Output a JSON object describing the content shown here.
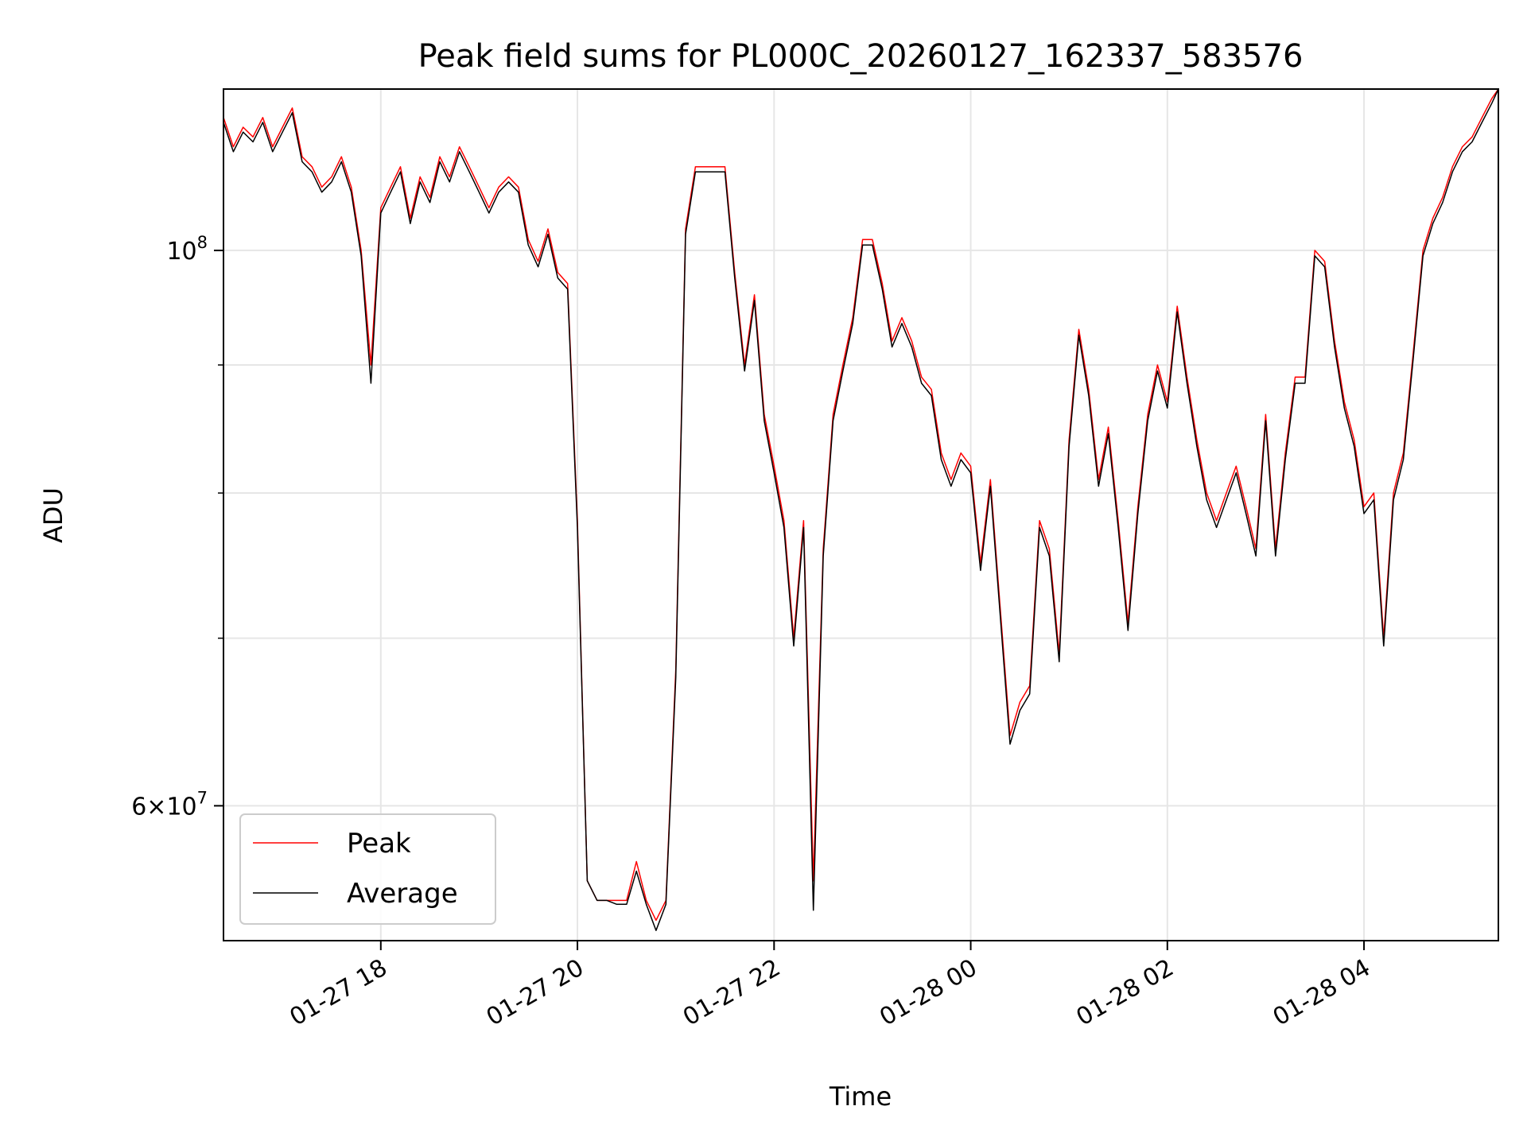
{
  "chart_data": {
    "type": "line",
    "title": "Peak field sums for PL000C_20260127_162337_583576",
    "xlabel": "Time",
    "ylabel": "ADU",
    "x_type": "datetime",
    "xlim": [
      "2026-01-27 16:24",
      "2026-01-28 05:22"
    ],
    "ylim": [
      53000000,
      116000000
    ],
    "y_scale": "log",
    "grid": true,
    "legend_position": "lower-left",
    "x_ticks": [
      {
        "label": "01-27 18",
        "value": "2026-01-27 18:00"
      },
      {
        "label": "01-27 20",
        "value": "2026-01-27 20:00"
      },
      {
        "label": "01-27 22",
        "value": "2026-01-27 22:00"
      },
      {
        "label": "01-28 00",
        "value": "2026-01-28 00:00"
      },
      {
        "label": "01-28 02",
        "value": "2026-01-28 02:00"
      },
      {
        "label": "01-28 04",
        "value": "2026-01-28 04:00"
      }
    ],
    "y_ticks": [
      {
        "label_base": "6×10",
        "label_exp": "7",
        "value": 60000000
      },
      {
        "label_base": "10",
        "label_exp": "8",
        "value": 100000000
      }
    ],
    "y_minor_ticks": [
      70000000,
      80000000,
      90000000
    ],
    "series": [
      {
        "name": "Peak",
        "color": "#ff0000",
        "x": [
          "2026-01-27 16:24",
          "2026-01-27 16:30",
          "2026-01-27 16:36",
          "2026-01-27 16:42",
          "2026-01-27 16:48",
          "2026-01-27 16:54",
          "2026-01-27 17:00",
          "2026-01-27 17:06",
          "2026-01-27 17:12",
          "2026-01-27 17:18",
          "2026-01-27 17:24",
          "2026-01-27 17:30",
          "2026-01-27 17:36",
          "2026-01-27 17:42",
          "2026-01-27 17:48",
          "2026-01-27 17:54",
          "2026-01-27 18:00",
          "2026-01-27 18:06",
          "2026-01-27 18:12",
          "2026-01-27 18:18",
          "2026-01-27 18:24",
          "2026-01-27 18:30",
          "2026-01-27 18:36",
          "2026-01-27 18:42",
          "2026-01-27 18:48",
          "2026-01-27 18:54",
          "2026-01-27 19:00",
          "2026-01-27 19:06",
          "2026-01-27 19:12",
          "2026-01-27 19:18",
          "2026-01-27 19:24",
          "2026-01-27 19:30",
          "2026-01-27 19:36",
          "2026-01-27 19:42",
          "2026-01-27 19:48",
          "2026-01-27 19:54",
          "2026-01-27 20:00",
          "2026-01-27 20:06",
          "2026-01-27 20:12",
          "2026-01-27 20:18",
          "2026-01-27 20:24",
          "2026-01-27 20:30",
          "2026-01-27 20:36",
          "2026-01-27 20:42",
          "2026-01-27 20:48",
          "2026-01-27 20:54",
          "2026-01-27 21:00",
          "2026-01-27 21:06",
          "2026-01-27 21:12",
          "2026-01-27 21:18",
          "2026-01-27 21:24",
          "2026-01-27 21:30",
          "2026-01-27 21:36",
          "2026-01-27 21:42",
          "2026-01-27 21:48",
          "2026-01-27 21:54",
          "2026-01-27 22:00",
          "2026-01-27 22:06",
          "2026-01-27 22:12",
          "2026-01-27 22:18",
          "2026-01-27 22:24",
          "2026-01-27 22:30",
          "2026-01-27 22:36",
          "2026-01-27 22:42",
          "2026-01-27 22:48",
          "2026-01-27 22:54",
          "2026-01-27 23:00",
          "2026-01-27 23:06",
          "2026-01-27 23:12",
          "2026-01-27 23:18",
          "2026-01-27 23:24",
          "2026-01-27 23:30",
          "2026-01-27 23:36",
          "2026-01-27 23:42",
          "2026-01-27 23:48",
          "2026-01-27 23:54",
          "2026-01-28 00:00",
          "2026-01-28 00:06",
          "2026-01-28 00:12",
          "2026-01-28 00:18",
          "2026-01-28 00:24",
          "2026-01-28 00:30",
          "2026-01-28 00:36",
          "2026-01-28 00:42",
          "2026-01-28 00:48",
          "2026-01-28 00:54",
          "2026-01-28 01:00",
          "2026-01-28 01:06",
          "2026-01-28 01:12",
          "2026-01-28 01:18",
          "2026-01-28 01:24",
          "2026-01-28 01:30",
          "2026-01-28 01:36",
          "2026-01-28 01:42",
          "2026-01-28 01:48",
          "2026-01-28 01:54",
          "2026-01-28 02:00",
          "2026-01-28 02:06",
          "2026-01-28 02:12",
          "2026-01-28 02:18",
          "2026-01-28 02:24",
          "2026-01-28 02:30",
          "2026-01-28 02:36",
          "2026-01-28 02:42",
          "2026-01-28 02:48",
          "2026-01-28 02:54",
          "2026-01-28 03:00",
          "2026-01-28 03:06",
          "2026-01-28 03:12",
          "2026-01-28 03:18",
          "2026-01-28 03:24",
          "2026-01-28 03:30",
          "2026-01-28 03:36",
          "2026-01-28 03:42",
          "2026-01-28 03:48",
          "2026-01-28 03:54",
          "2026-01-28 04:00",
          "2026-01-28 04:06",
          "2026-01-28 04:12",
          "2026-01-28 04:18",
          "2026-01-28 04:24",
          "2026-01-28 04:30",
          "2026-01-28 04:36",
          "2026-01-28 04:42",
          "2026-01-28 04:48",
          "2026-01-28 04:54",
          "2026-01-28 05:00",
          "2026-01-28 05:06",
          "2026-01-28 05:12",
          "2026-01-28 05:18",
          "2026-01-28 05:22"
        ],
        "y": [
          113000000,
          110000000,
          112000000,
          111000000,
          113000000,
          110000000,
          112000000,
          114000000,
          109000000,
          108000000,
          106000000,
          107000000,
          109000000,
          106000000,
          100000000,
          90000000,
          104000000,
          106000000,
          108000000,
          103000000,
          107000000,
          105000000,
          109000000,
          107000000,
          110000000,
          108000000,
          106000000,
          104000000,
          106000000,
          107000000,
          106000000,
          101000000,
          99000000,
          102000000,
          98000000,
          97000000,
          78000000,
          56000000,
          55000000,
          55000000,
          55000000,
          55000000,
          57000000,
          55000000,
          54000000,
          55000000,
          68000000,
          102000000,
          108000000,
          108000000,
          108000000,
          108000000,
          98000000,
          90000000,
          96000000,
          86000000,
          82000000,
          78000000,
          70000000,
          78000000,
          56000000,
          76000000,
          86000000,
          90000000,
          94000000,
          101000000,
          101000000,
          97000000,
          92000000,
          94000000,
          92000000,
          89000000,
          88000000,
          83000000,
          81000000,
          83000000,
          82000000,
          75000000,
          81000000,
          72000000,
          64000000,
          66000000,
          67000000,
          78000000,
          76000000,
          69000000,
          84000000,
          93000000,
          88000000,
          81000000,
          85000000,
          78000000,
          71000000,
          79000000,
          86000000,
          90000000,
          87000000,
          95000000,
          89000000,
          84000000,
          80000000,
          78000000,
          80000000,
          82000000,
          79000000,
          76000000,
          86000000,
          76000000,
          83000000,
          89000000,
          89000000,
          100000000,
          99000000,
          92000000,
          87000000,
          84000000,
          79000000,
          80000000,
          70000000,
          80000000,
          83000000,
          91000000,
          100000000,
          103000000,
          105000000,
          108000000,
          110000000,
          111000000,
          113000000,
          115000000,
          116000000
        ]
      },
      {
        "name": "Average",
        "color": "#000000",
        "x": [
          "2026-01-27 16:24",
          "2026-01-27 16:30",
          "2026-01-27 16:36",
          "2026-01-27 16:42",
          "2026-01-27 16:48",
          "2026-01-27 16:54",
          "2026-01-27 17:00",
          "2026-01-27 17:06",
          "2026-01-27 17:12",
          "2026-01-27 17:18",
          "2026-01-27 17:24",
          "2026-01-27 17:30",
          "2026-01-27 17:36",
          "2026-01-27 17:42",
          "2026-01-27 17:48",
          "2026-01-27 17:54",
          "2026-01-27 18:00",
          "2026-01-27 18:06",
          "2026-01-27 18:12",
          "2026-01-27 18:18",
          "2026-01-27 18:24",
          "2026-01-27 18:30",
          "2026-01-27 18:36",
          "2026-01-27 18:42",
          "2026-01-27 18:48",
          "2026-01-27 18:54",
          "2026-01-27 19:00",
          "2026-01-27 19:06",
          "2026-01-27 19:12",
          "2026-01-27 19:18",
          "2026-01-27 19:24",
          "2026-01-27 19:30",
          "2026-01-27 19:36",
          "2026-01-27 19:42",
          "2026-01-27 19:48",
          "2026-01-27 19:54",
          "2026-01-27 20:00",
          "2026-01-27 20:06",
          "2026-01-27 20:12",
          "2026-01-27 20:18",
          "2026-01-27 20:24",
          "2026-01-27 20:30",
          "2026-01-27 20:36",
          "2026-01-27 20:42",
          "2026-01-27 20:48",
          "2026-01-27 20:54",
          "2026-01-27 21:00",
          "2026-01-27 21:06",
          "2026-01-27 21:12",
          "2026-01-27 21:18",
          "2026-01-27 21:24",
          "2026-01-27 21:30",
          "2026-01-27 21:36",
          "2026-01-27 21:42",
          "2026-01-27 21:48",
          "2026-01-27 21:54",
          "2026-01-27 22:00",
          "2026-01-27 22:06",
          "2026-01-27 22:12",
          "2026-01-27 22:18",
          "2026-01-27 22:24",
          "2026-01-27 22:30",
          "2026-01-27 22:36",
          "2026-01-27 22:42",
          "2026-01-27 22:48",
          "2026-01-27 22:54",
          "2026-01-27 23:00",
          "2026-01-27 23:06",
          "2026-01-27 23:12",
          "2026-01-27 23:18",
          "2026-01-27 23:24",
          "2026-01-27 23:30",
          "2026-01-27 23:36",
          "2026-01-27 23:42",
          "2026-01-27 23:48",
          "2026-01-27 23:54",
          "2026-01-28 00:00",
          "2026-01-28 00:06",
          "2026-01-28 00:12",
          "2026-01-28 00:18",
          "2026-01-28 00:24",
          "2026-01-28 00:30",
          "2026-01-28 00:36",
          "2026-01-28 00:42",
          "2026-01-28 00:48",
          "2026-01-28 00:54",
          "2026-01-28 01:00",
          "2026-01-28 01:06",
          "2026-01-28 01:12",
          "2026-01-28 01:18",
          "2026-01-28 01:24",
          "2026-01-28 01:30",
          "2026-01-28 01:36",
          "2026-01-28 01:42",
          "2026-01-28 01:48",
          "2026-01-28 01:54",
          "2026-01-28 02:00",
          "2026-01-28 02:06",
          "2026-01-28 02:12",
          "2026-01-28 02:18",
          "2026-01-28 02:24",
          "2026-01-28 02:30",
          "2026-01-28 02:36",
          "2026-01-28 02:42",
          "2026-01-28 02:48",
          "2026-01-28 02:54",
          "2026-01-28 03:00",
          "2026-01-28 03:06",
          "2026-01-28 03:12",
          "2026-01-28 03:18",
          "2026-01-28 03:24",
          "2026-01-28 03:30",
          "2026-01-28 03:36",
          "2026-01-28 03:42",
          "2026-01-28 03:48",
          "2026-01-28 03:54",
          "2026-01-28 04:00",
          "2026-01-28 04:06",
          "2026-01-28 04:12",
          "2026-01-28 04:18",
          "2026-01-28 04:24",
          "2026-01-28 04:30",
          "2026-01-28 04:36",
          "2026-01-28 04:42",
          "2026-01-28 04:48",
          "2026-01-28 04:54",
          "2026-01-28 05:00",
          "2026-01-28 05:06",
          "2026-01-28 05:12",
          "2026-01-28 05:18",
          "2026-01-28 05:22"
        ],
        "y": [
          112500000,
          109500000,
          111500000,
          110500000,
          112500000,
          109500000,
          111500000,
          113500000,
          108500000,
          107500000,
          105500000,
          106500000,
          108500000,
          105500000,
          99500000,
          88500000,
          103500000,
          105500000,
          107500000,
          102500000,
          106500000,
          104500000,
          108500000,
          106500000,
          109500000,
          107500000,
          105500000,
          103500000,
          105500000,
          106500000,
          105500000,
          100500000,
          98500000,
          101500000,
          97500000,
          96500000,
          77500000,
          56000000,
          55000000,
          55000000,
          54800000,
          54800000,
          56500000,
          54800000,
          53500000,
          54800000,
          67500000,
          101500000,
          107500000,
          107500000,
          107500000,
          107500000,
          97500000,
          89500000,
          95500000,
          85500000,
          81500000,
          77500000,
          69500000,
          77500000,
          54500000,
          75500000,
          85500000,
          89500000,
          93500000,
          100500000,
          100500000,
          96500000,
          91500000,
          93500000,
          91500000,
          88500000,
          87500000,
          82500000,
          80500000,
          82500000,
          81500000,
          74500000,
          80500000,
          71500000,
          63500000,
          65500000,
          66500000,
          77500000,
          75500000,
          68500000,
          83500000,
          92500000,
          87500000,
          80500000,
          84500000,
          77500000,
          70500000,
          78500000,
          85500000,
          89500000,
          86500000,
          94500000,
          88500000,
          83500000,
          79500000,
          77500000,
          79500000,
          81500000,
          78500000,
          75500000,
          85500000,
          75500000,
          82500000,
          88500000,
          88500000,
          99500000,
          98500000,
          91500000,
          86500000,
          83500000,
          78500000,
          79500000,
          69500000,
          79500000,
          82500000,
          90500000,
          99500000,
          102500000,
          104500000,
          107500000,
          109500000,
          110500000,
          112500000,
          114500000,
          116000000
        ]
      }
    ]
  }
}
